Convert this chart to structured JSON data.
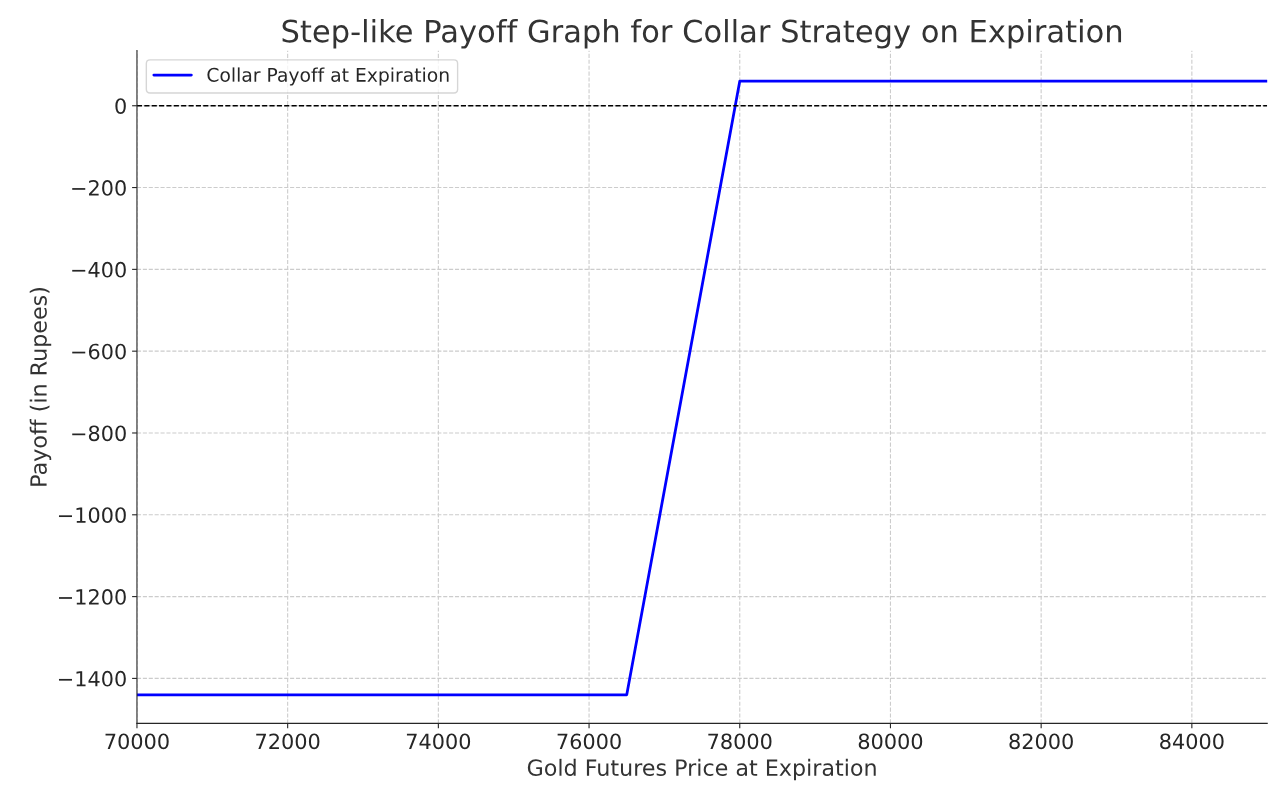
{
  "chart_data": {
    "type": "line",
    "title": "Step-like Payoff Graph for Collar Strategy on Expiration",
    "xlabel": "Gold Futures Price at Expiration",
    "ylabel": "Payoff (in Rupees)",
    "series": [
      {
        "name": "Collar Payoff at Expiration",
        "color": "#0000ff",
        "x": [
          70000,
          76500,
          78000,
          85000
        ],
        "values": [
          -1440,
          -1440,
          60,
          60
        ]
      }
    ],
    "xlim": [
      70000,
      85000
    ],
    "xticks": [
      70000,
      72000,
      74000,
      76000,
      78000,
      80000,
      82000,
      84000
    ],
    "ylim": [
      -1510,
      135
    ],
    "yticks": [
      -1400,
      -1200,
      -1000,
      -800,
      -600,
      -400,
      -200,
      0
    ],
    "ref_lines": [
      {
        "axis": "y",
        "value": 0,
        "color": "#000000",
        "line_style": "dashed"
      }
    ],
    "grid": true,
    "legend": "top left",
    "line_style": "solid",
    "marker": "none"
  }
}
